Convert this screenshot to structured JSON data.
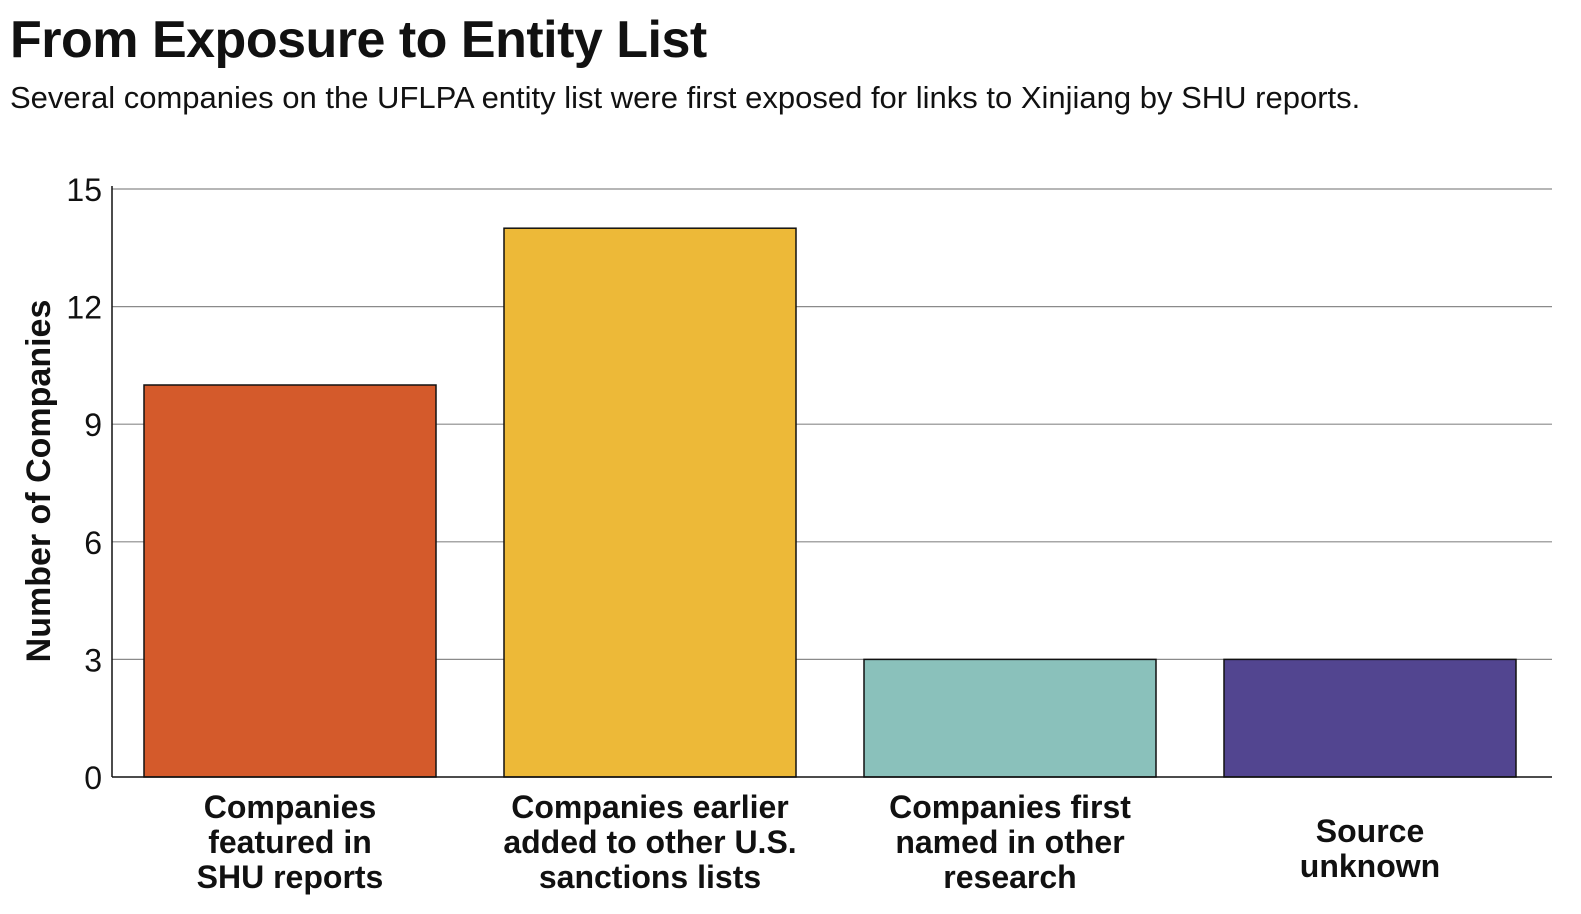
{
  "colors": {
    "background": "#ffffff",
    "text": "#111111",
    "gridline": "#8a8a8a",
    "axis": "#111111",
    "bar_outline": "#111111"
  },
  "chart_data": {
    "type": "bar",
    "title": "From Exposure to Entity List",
    "subtitle": "Several companies on the UFLPA entity list were first exposed for links to Xinjiang by SHU reports.",
    "xlabel": "",
    "ylabel": "Number of Companies",
    "ylim": [
      0,
      15
    ],
    "yticks": [
      0,
      3,
      6,
      9,
      12,
      15
    ],
    "grid": true,
    "legend": "none",
    "categories": [
      "Companies featured in SHU reports",
      "Companies earlier added to other U.S. sanctions lists",
      "Companies first named in other research",
      "Source unknown"
    ],
    "category_lines": [
      [
        "Companies",
        "featured in",
        "SHU reports"
      ],
      [
        "Companies earlier",
        "added to other U.S.",
        "sanctions lists"
      ],
      [
        "Companies first",
        "named in other",
        "research"
      ],
      [
        "Source",
        "unknown"
      ]
    ],
    "values": [
      10,
      14,
      3,
      3
    ],
    "bar_colors": [
      "#d45a2b",
      "#edb938",
      "#8ac1bb",
      "#524590"
    ]
  }
}
